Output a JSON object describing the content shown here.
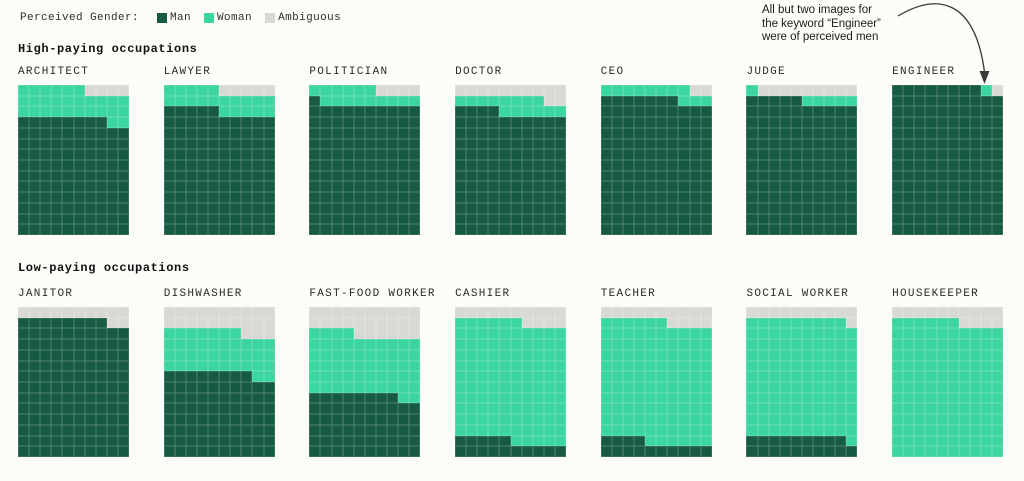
{
  "legend": {
    "title": "Perceived Gender:",
    "items": [
      {
        "id": "man",
        "label": "Man"
      },
      {
        "id": "woman",
        "label": "Woman"
      },
      {
        "id": "ambiguous",
        "label": "Ambiguous"
      }
    ]
  },
  "annotation": {
    "lines": [
      "All but two images for",
      "the keyword “Engineer”",
      "were of perceived men"
    ],
    "target": "ENGINEER"
  },
  "chart_data": {
    "type": "waffle",
    "grid": {
      "columns": 10,
      "rows": 14,
      "cells_per_chart": 140
    },
    "fill_order": "bottom row to top row, left to right within each row; Man first, then Woman, then Ambiguous",
    "categories": [
      "Man",
      "Woman",
      "Ambiguous"
    ],
    "colors": {
      "man": "#175a43",
      "woman": "#3bd5a0",
      "ambiguous": "#d8d8d4"
    },
    "legend_position": "top-left",
    "groups": [
      {
        "title": "High-paying occupations",
        "occupations": [
          {
            "label": "ARCHITECT",
            "man": 108,
            "woman": 28,
            "ambiguous": 4
          },
          {
            "label": "LAWYER",
            "man": 115,
            "woman": 20,
            "ambiguous": 5
          },
          {
            "label": "POLITICIAN",
            "man": 121,
            "woman": 15,
            "ambiguous": 4
          },
          {
            "label": "DOCTOR",
            "man": 114,
            "woman": 14,
            "ambiguous": 12
          },
          {
            "label": "CEO",
            "man": 127,
            "woman": 11,
            "ambiguous": 2
          },
          {
            "label": "JUDGE",
            "man": 125,
            "woman": 6,
            "ambiguous": 9
          },
          {
            "label": "ENGINEER",
            "man": 138,
            "woman": 1,
            "ambiguous": 1
          }
        ]
      },
      {
        "title": "Low-paying occupations",
        "occupations": [
          {
            "label": "JANITOR",
            "man": 128,
            "woman": 0,
            "ambiguous": 12
          },
          {
            "label": "DISHWASHER",
            "man": 78,
            "woman": 39,
            "ambiguous": 23
          },
          {
            "label": "FAST-FOOD WORKER",
            "man": 58,
            "woman": 56,
            "ambiguous": 26
          },
          {
            "label": "CASHIER",
            "man": 15,
            "woman": 111,
            "ambiguous": 14
          },
          {
            "label": "TEACHER",
            "man": 14,
            "woman": 112,
            "ambiguous": 14
          },
          {
            "label": "SOCIAL WORKER",
            "man": 19,
            "woman": 110,
            "ambiguous": 11
          },
          {
            "label": "HOUSEKEEPER",
            "man": 0,
            "woman": 126,
            "ambiguous": 14
          }
        ]
      }
    ]
  },
  "colors": {
    "background": "#fcfcf9",
    "text": "#1e1e1e",
    "arrow": "#3a3a3a"
  }
}
